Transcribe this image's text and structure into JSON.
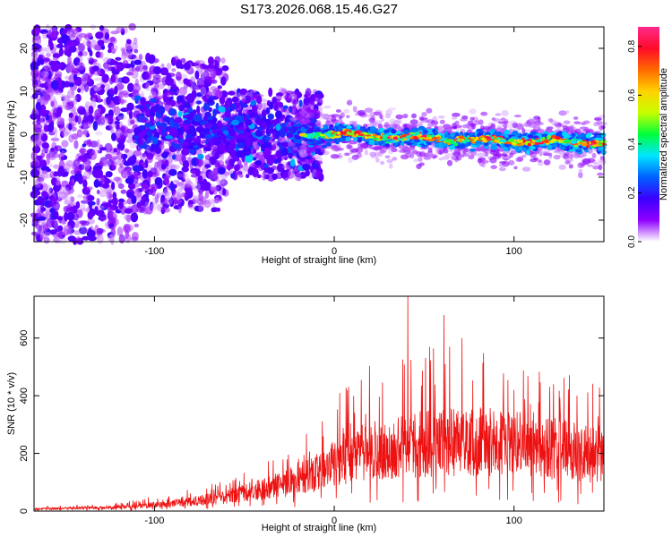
{
  "title": "S173.2026.068.15.46.G27",
  "chart_data": [
    {
      "type": "heatmap",
      "name": "spectrogram",
      "xlabel": "Height of straight line (km)",
      "ylabel": "Frequency (Hz)",
      "xlim": [
        -167,
        150
      ],
      "ylim": [
        -25,
        25
      ],
      "xticks": [
        -100,
        0,
        100
      ],
      "yticks": [
        20,
        10,
        0,
        -10,
        -20
      ],
      "colorbar": {
        "label": "Normalized spectral amplitude",
        "range": [
          0,
          0.88
        ],
        "ticks": [
          0,
          0.2,
          0.4,
          0.6,
          0.8
        ],
        "colormap": [
          "#ffffff",
          "#8f00ff",
          "#3a00ff",
          "#0060ff",
          "#00e5ff",
          "#00ff3a",
          "#c8ff00",
          "#ffd200",
          "#ff6a00",
          "#ff0a2a",
          "#ff2a8c"
        ]
      },
      "ridge_trend": [
        {
          "x": -100,
          "y": 1
        },
        {
          "x": -60,
          "y": 1
        },
        {
          "x": -20,
          "y": 0
        },
        {
          "x": 0,
          "y": 0
        },
        {
          "x": 50,
          "y": -1
        },
        {
          "x": 100,
          "y": -1.5
        },
        {
          "x": 150,
          "y": -2
        }
      ]
    },
    {
      "type": "line",
      "name": "snr",
      "xlabel": "Height of straight line (km)",
      "ylabel": "SNR (10 * v/v)",
      "xlim": [
        -167,
        150
      ],
      "ylim": [
        0,
        745
      ],
      "xticks": [
        -100,
        0,
        100
      ],
      "yticks": [
        0,
        200,
        400,
        600
      ],
      "color": "#ee1111",
      "envelope": [
        {
          "x": -167,
          "y": 8
        },
        {
          "x": -120,
          "y": 15
        },
        {
          "x": -90,
          "y": 28
        },
        {
          "x": -60,
          "y": 55
        },
        {
          "x": -40,
          "y": 85
        },
        {
          "x": -20,
          "y": 120
        },
        {
          "x": -5,
          "y": 165
        },
        {
          "x": 0,
          "y": 190
        },
        {
          "x": 20,
          "y": 230
        },
        {
          "x": 50,
          "y": 260
        },
        {
          "x": 80,
          "y": 270
        },
        {
          "x": 110,
          "y": 255
        },
        {
          "x": 130,
          "y": 235
        },
        {
          "x": 150,
          "y": 205
        }
      ],
      "peaks": [
        {
          "x": 41,
          "y": 745
        },
        {
          "x": 61,
          "y": 680
        },
        {
          "x": 71,
          "y": 600
        },
        {
          "x": 53,
          "y": 570
        },
        {
          "x": 15,
          "y": 455
        },
        {
          "x": 100,
          "y": 420
        },
        {
          "x": 122,
          "y": 440
        }
      ]
    }
  ]
}
